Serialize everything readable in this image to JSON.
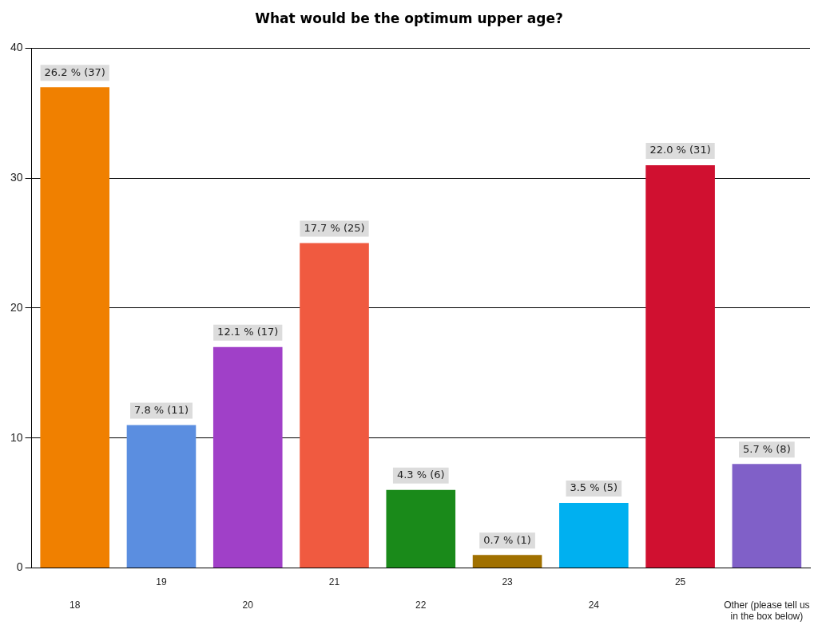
{
  "chart_data": {
    "type": "bar",
    "title": "What would be the optimum upper age?",
    "categories": [
      "18",
      "19",
      "20",
      "21",
      "22",
      "23",
      "24",
      "25",
      "Other (please tell us in the box below)"
    ],
    "values": [
      37,
      11,
      17,
      25,
      6,
      1,
      5,
      31,
      8
    ],
    "colors": [
      "#f08000",
      "#5b8ee0",
      "#a040c8",
      "#f05a40",
      "#1a8a1a",
      "#a07000",
      "#00b0f0",
      "#d01030",
      "#8060c8"
    ],
    "value_labels": [
      "26.2 % (37)",
      "7.8 % (11)",
      "12.1 % (17)",
      "17.7 % (25)",
      "4.3 % (6)",
      "0.7 % (1)",
      "3.5 % (5)",
      "22.0 % (31)",
      "5.7 % (8)"
    ],
    "ylim": [
      0,
      40
    ],
    "yticks": [
      0,
      10,
      20,
      30,
      40
    ],
    "grid": "y",
    "legend": false
  }
}
